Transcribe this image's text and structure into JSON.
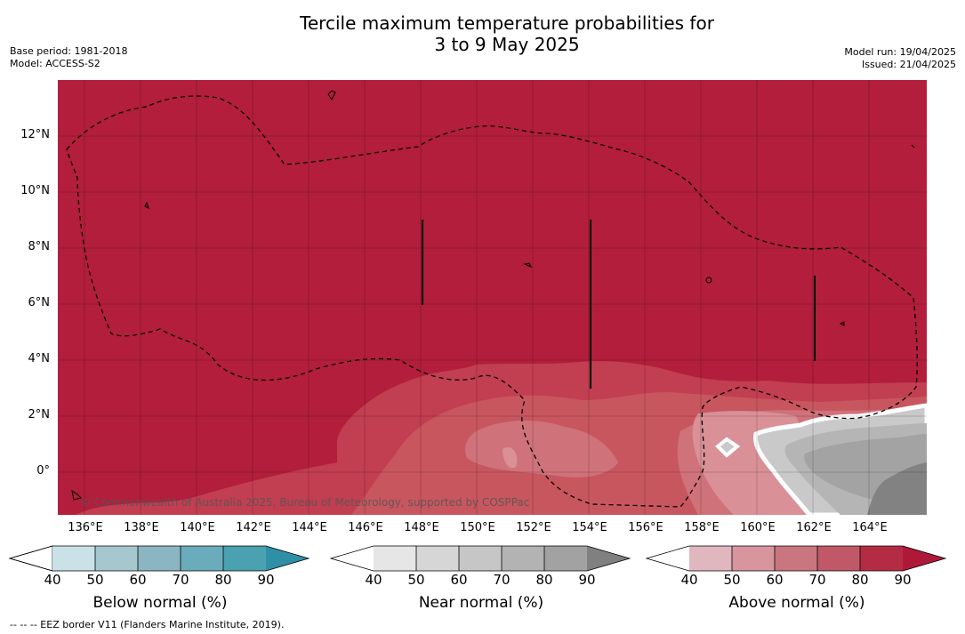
{
  "title": {
    "line1": "Tercile maximum temperature probabilities for",
    "line2": "3 to 9 May 2025"
  },
  "meta": {
    "base_period": "Base period: 1981-2018",
    "model": "Model: ACCESS-S2",
    "model_run": "Model run: 19/04/2025",
    "issued": "Issued: 21/04/2025"
  },
  "map": {
    "latitude_labels": [
      "12°N",
      "10°N",
      "8°N",
      "6°N",
      "4°N",
      "2°N",
      "0°"
    ],
    "longitude_labels": [
      "136°E",
      "138°E",
      "140°E",
      "142°E",
      "144°E",
      "146°E",
      "148°E",
      "150°E",
      "152°E",
      "154°E",
      "156°E",
      "158°E",
      "160°E",
      "162°E",
      "164°E"
    ],
    "credit": "© Commonwealth of Australia 2025, Bureau of Meteorology, supported by COSPPac",
    "colors": {
      "above_90": "#b21e3b",
      "above_80": "#c23e51",
      "above_70": "#c8565f",
      "above_60": "#cf727a",
      "above_50": "#d99097",
      "near_80": "#a3a3a3",
      "near_70": "#b5b5b5",
      "near_60": "#c9c9c9",
      "near_90": "#828282"
    }
  },
  "colorbars": [
    {
      "title": "Below normal (%)",
      "ticks": [
        "40",
        "50",
        "60",
        "70",
        "80",
        "90"
      ],
      "colors": [
        "#ffffff",
        "#c9e1e7",
        "#a7c7ce",
        "#8bb6c1",
        "#6aacbb",
        "#4aa1b0",
        "#2f8fa6"
      ]
    },
    {
      "title": "Near normal (%)",
      "ticks": [
        "40",
        "50",
        "60",
        "70",
        "80",
        "90"
      ],
      "colors": [
        "#ffffff",
        "#e6e6e6",
        "#d6d6d6",
        "#c6c6c6",
        "#b3b3b3",
        "#a2a2a2",
        "#808080"
      ]
    },
    {
      "title": "Above normal (%)",
      "ticks": [
        "40",
        "50",
        "60",
        "70",
        "80",
        "90"
      ],
      "colors": [
        "#ffffff",
        "#e0b7bf",
        "#d8959d",
        "#c97680",
        "#c15868",
        "#b42c44",
        "#b0183a"
      ]
    }
  ],
  "footer": "-- -- -- EEZ border V11 (Flanders Marine Institute, 2019)."
}
